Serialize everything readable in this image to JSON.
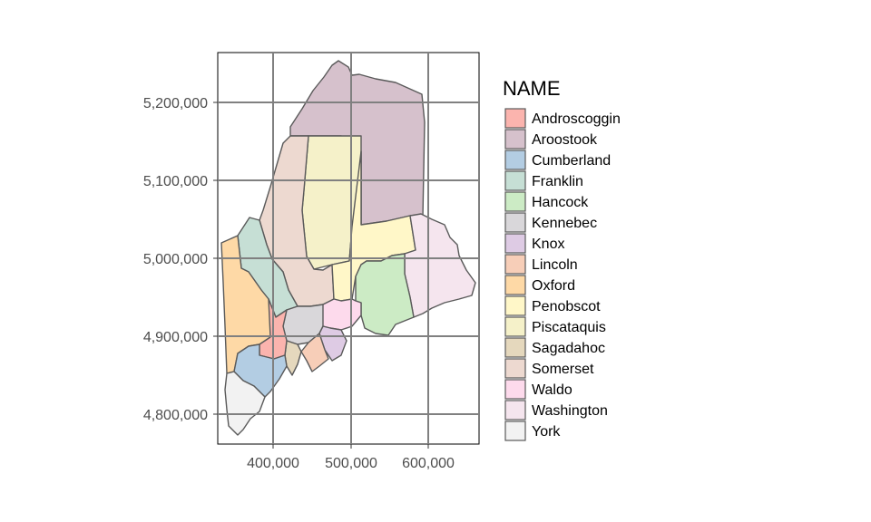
{
  "legend": {
    "title": "NAME",
    "items": [
      {
        "label": "Androscoggin",
        "color": "#FBB4AE"
      },
      {
        "label": "Aroostook",
        "color": "#D6C1CC"
      },
      {
        "label": "Cumberland",
        "color": "#B3CDE3"
      },
      {
        "label": "Franklin",
        "color": "#C6DFD5"
      },
      {
        "label": "Hancock",
        "color": "#CCEBC5"
      },
      {
        "label": "Kennebec",
        "color": "#D9D7DA"
      },
      {
        "label": "Knox",
        "color": "#DECBE4"
      },
      {
        "label": "Lincoln",
        "color": "#F7CEB8"
      },
      {
        "label": "Oxford",
        "color": "#FED9A6"
      },
      {
        "label": "Penobscot",
        "color": "#FFF7C8"
      },
      {
        "label": "Piscataquis",
        "color": "#F5F1C9"
      },
      {
        "label": "Sagadahoc",
        "color": "#E5D8BD"
      },
      {
        "label": "Somerset",
        "color": "#EDD9D0"
      },
      {
        "label": "Waldo",
        "color": "#FDDAEC"
      },
      {
        "label": "Washington",
        "color": "#F5E5EE"
      },
      {
        "label": "York",
        "color": "#F2F2F2"
      }
    ]
  },
  "axes": {
    "x_ticks": [
      "400,000",
      "500,000",
      "600,000"
    ],
    "y_ticks": [
      "5,200,000",
      "5,100,000",
      "5,000,000",
      "4,900,000",
      "4,800,000"
    ]
  }
}
